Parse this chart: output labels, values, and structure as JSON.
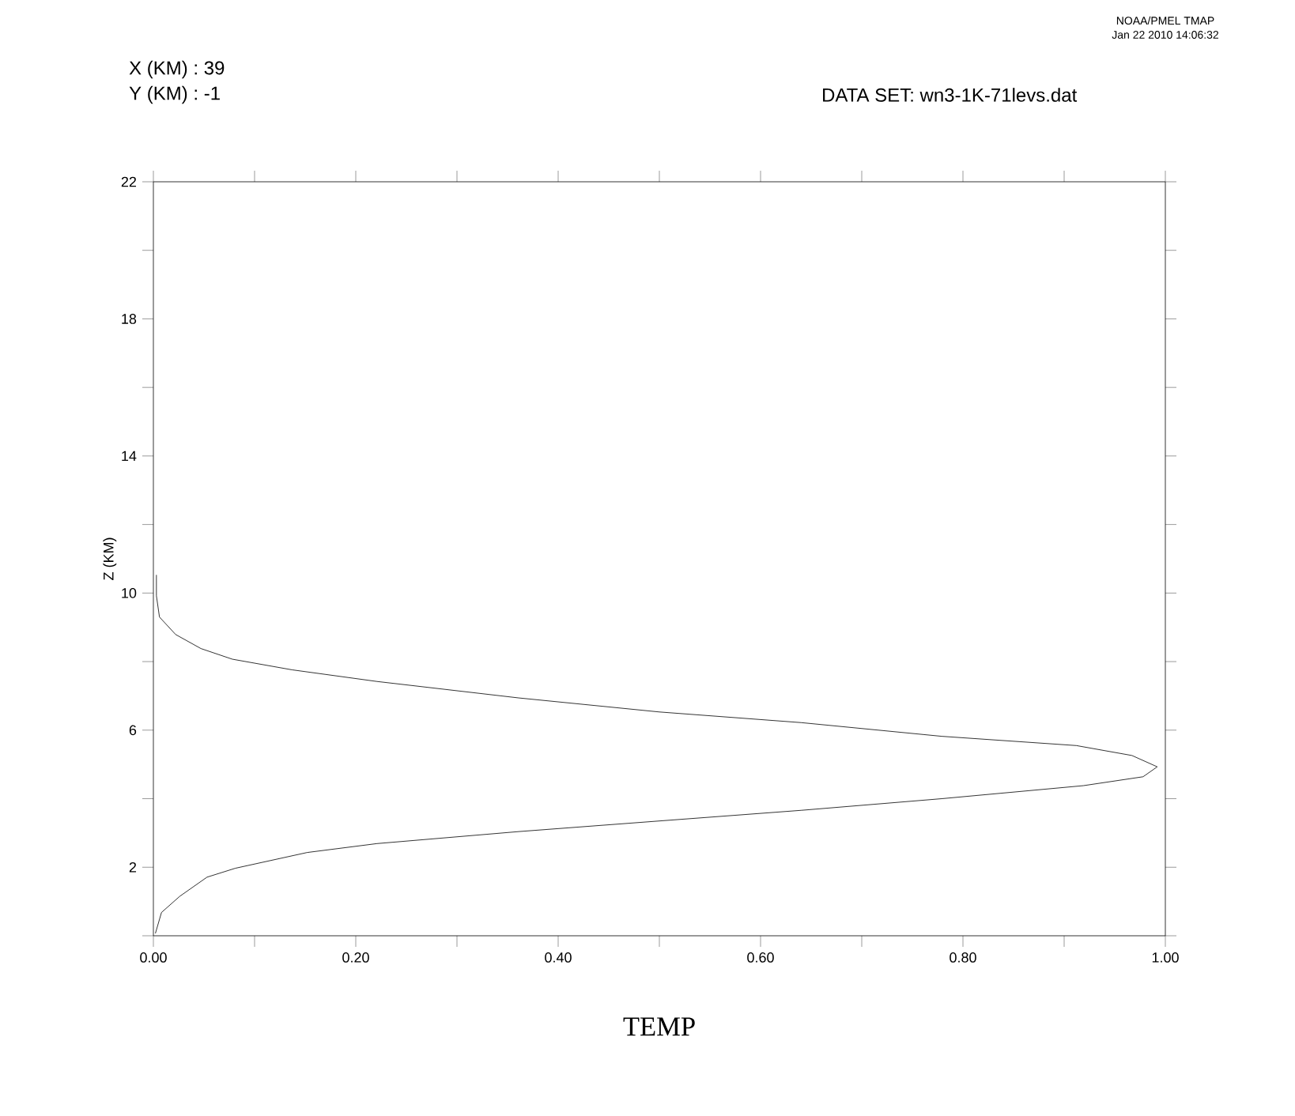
{
  "chart_data": {
    "type": "line",
    "title": "X (KM) : 39",
    "subtitle": "Y (KM) : -1",
    "xlabel": "TEMP",
    "ylabel": "Z (KM)",
    "annotations": [
      "DATA SET: wn3-1K-71levs.dat",
      "NOAA/PMEL TMAP",
      "Jan 22 2010 14:06:32"
    ],
    "x": [
      0.003,
      0.003,
      0.006,
      0.022,
      0.047,
      0.078,
      0.137,
      0.221,
      0.361,
      0.5,
      0.64,
      0.779,
      0.912,
      0.967,
      0.992,
      0.978,
      0.919,
      0.779,
      0.64,
      0.5,
      0.361,
      0.221,
      0.152,
      0.081,
      0.053,
      0.026,
      0.008,
      0.002
    ],
    "values": [
      10.53,
      9.92,
      9.3,
      8.79,
      8.38,
      8.07,
      7.76,
      7.42,
      6.94,
      6.53,
      6.22,
      5.82,
      5.55,
      5.26,
      4.93,
      4.64,
      4.38,
      4.0,
      3.66,
      3.35,
      3.04,
      2.69,
      2.43,
      1.97,
      1.71,
      1.15,
      0.68,
      0.07
    ],
    "color": "#000000",
    "xlim": [
      0,
      1
    ],
    "ylim": [
      0,
      22
    ],
    "xticks": [
      {
        "value": 0,
        "label": "0.00"
      },
      {
        "value": 0.1,
        "label": null
      },
      {
        "value": 0.2,
        "label": "0.20"
      },
      {
        "value": 0.3,
        "label": null
      },
      {
        "value": 0.4,
        "label": "0.40"
      },
      {
        "value": 0.5,
        "label": null
      },
      {
        "value": 0.6,
        "label": "0.60"
      },
      {
        "value": 0.7,
        "label": null
      },
      {
        "value": 0.8,
        "label": "0.80"
      },
      {
        "value": 0.9,
        "label": null
      },
      {
        "value": 1,
        "label": "1.00"
      }
    ],
    "yticks": [
      {
        "value": 0,
        "label": null
      },
      2,
      {
        "value": 4,
        "label": null
      },
      6,
      {
        "value": 8,
        "label": null
      },
      10,
      {
        "value": 12,
        "label": null
      },
      14,
      {
        "value": 16,
        "label": null
      },
      18,
      {
        "value": 20,
        "label": null
      },
      22
    ],
    "line_style": "solid",
    "marker": "none",
    "grid": false
  }
}
